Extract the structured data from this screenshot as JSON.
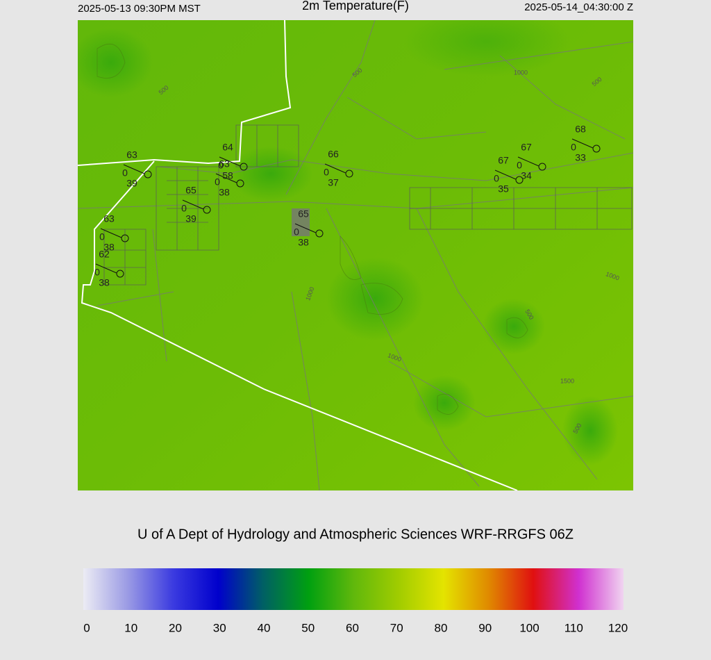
{
  "header": {
    "left": "2025-05-13 09:30PM MST",
    "title": "2m Temperature(F)",
    "right": "2025-05-14_04:30:00 Z"
  },
  "credit": "U of A Dept of Hydrology and Atmospheric Sciences WRF-RRGFS 06Z",
  "colorbar": {
    "ticks": [
      0,
      10,
      20,
      30,
      40,
      50,
      60,
      70,
      80,
      90,
      100,
      110,
      120
    ]
  },
  "stations": [
    {
      "temp": 63,
      "wind": 0,
      "dewpoint": 39
    },
    {
      "temp": 64,
      "wind": 0,
      "dewpoint": 58
    },
    {
      "temp": 63,
      "wind": 0,
      "dewpoint": 38
    },
    {
      "temp": 65,
      "wind": 0,
      "dewpoint": 39
    },
    {
      "temp": 63,
      "wind": 0,
      "dewpoint": 38
    },
    {
      "temp": 62,
      "wind": 0,
      "dewpoint": 38
    },
    {
      "temp": 66,
      "wind": 0,
      "dewpoint": 37
    },
    {
      "temp": 65,
      "wind": 0,
      "dewpoint": 38
    },
    {
      "temp": 67,
      "wind": 0,
      "dewpoint": 35
    },
    {
      "temp": 67,
      "wind": 0,
      "dewpoint": 34
    },
    {
      "temp": 68,
      "wind": 0,
      "dewpoint": 33
    }
  ],
  "contour_labels": [
    "500",
    "500",
    "1000",
    "500",
    "1000",
    "500",
    "1000",
    "1000",
    "1500",
    "500"
  ]
}
